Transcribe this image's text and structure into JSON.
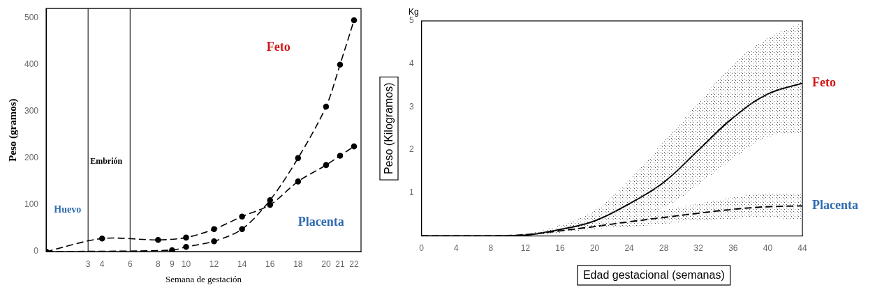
{
  "chart_data": [
    {
      "type": "line",
      "x_label": "Semana de gestación",
      "y_label": "Peso (gramos)",
      "xlim": [
        0,
        22.5
      ],
      "ylim": [
        0,
        520
      ],
      "xticks": [
        3,
        4,
        6,
        8,
        9,
        10,
        12,
        14,
        16,
        18,
        20,
        21,
        22
      ],
      "yticks": [
        0,
        100,
        200,
        300,
        400,
        500
      ],
      "grid": false,
      "annotations": [
        "Huevo",
        "Embrión"
      ],
      "boundaries": [
        3,
        6
      ],
      "series": [
        {
          "name": "Feto",
          "color": "#000000",
          "marker": "circle",
          "line_style": "dashed",
          "x": [
            0,
            9,
            10,
            12,
            14,
            16,
            18,
            20,
            21,
            22
          ],
          "values": [
            0,
            3,
            10,
            22,
            48,
            110,
            200,
            310,
            400,
            495
          ]
        },
        {
          "name": "Placenta",
          "color": "#000000",
          "marker": "circle",
          "line_style": "dashed",
          "x": [
            0,
            4,
            8,
            10,
            12,
            14,
            16,
            18,
            20,
            21,
            22
          ],
          "values": [
            0,
            28,
            25,
            30,
            48,
            75,
            100,
            150,
            185,
            205,
            225
          ]
        }
      ]
    },
    {
      "type": "line",
      "x_label": "Edad gestacional (semanas)",
      "y_label": "Peso (Kilogramos)",
      "unit_label": "Kg",
      "xlim": [
        0,
        44
      ],
      "ylim": [
        0,
        5
      ],
      "xticks": [
        0,
        4,
        8,
        12,
        16,
        20,
        24,
        28,
        32,
        36,
        40,
        44
      ],
      "yticks": [
        1,
        2,
        3,
        4,
        5
      ],
      "grid": false,
      "x": [
        0,
        4,
        8,
        12,
        16,
        20,
        24,
        28,
        32,
        36,
        40,
        44
      ],
      "series": [
        {
          "name": "Feto",
          "color": "#000000",
          "marker": "none",
          "line_style": "solid",
          "values": [
            0,
            0,
            0,
            0.02,
            0.15,
            0.35,
            0.75,
            1.25,
            2.0,
            2.75,
            3.3,
            3.55
          ],
          "lower": [
            0,
            0,
            0,
            0,
            0.08,
            0.2,
            0.4,
            0.65,
            1.2,
            1.8,
            2.3,
            2.4
          ],
          "upper": [
            0,
            0,
            0,
            0.05,
            0.25,
            0.6,
            1.3,
            2.2,
            3.1,
            4.0,
            4.6,
            4.95
          ]
        },
        {
          "name": "Placenta",
          "color": "#000000",
          "marker": "none",
          "line_style": "dashed",
          "values": [
            0,
            0,
            0,
            0.03,
            0.12,
            0.22,
            0.33,
            0.43,
            0.53,
            0.62,
            0.68,
            0.7
          ],
          "lower": [
            0,
            0,
            0,
            0,
            0.08,
            0.15,
            0.2,
            0.28,
            0.35,
            0.4,
            0.42,
            0.38
          ],
          "upper": [
            0,
            0,
            0,
            0.05,
            0.15,
            0.3,
            0.45,
            0.6,
            0.75,
            0.9,
            1.0,
            1.0
          ]
        }
      ]
    }
  ]
}
